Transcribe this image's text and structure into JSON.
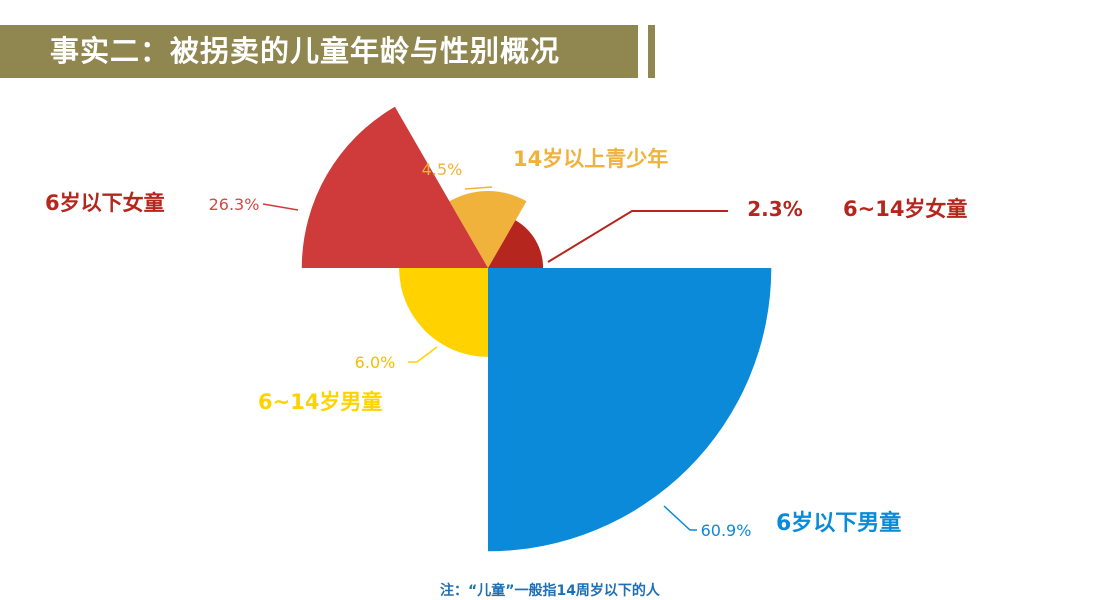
{
  "title": "事实二：被拐卖的儿童年龄与性别概况",
  "footnote": "注：“儿童”一般指14周岁以下的人",
  "chart_data": {
    "type": "pie",
    "variant": "polar-area",
    "unit": "%",
    "categories": [
      "14岁以上青少年",
      "6~14岁女童",
      "6岁以下男童",
      "6~14岁男童",
      "6岁以下女童"
    ],
    "values": [
      4.5,
      2.3,
      60.9,
      6.0,
      26.3
    ],
    "value_labels": [
      "4.5%",
      "2.3%",
      "60.9%",
      "6.0%",
      "26.3%"
    ],
    "colors": [
      "#f0b23a",
      "#b5261e",
      "#0a8ad8",
      "#ffd200",
      "#cf3a3a"
    ],
    "label_colors": [
      "#f0b23a",
      "#b5261e",
      "#0a8ad8",
      "#ffd200",
      "#b5261e"
    ]
  }
}
